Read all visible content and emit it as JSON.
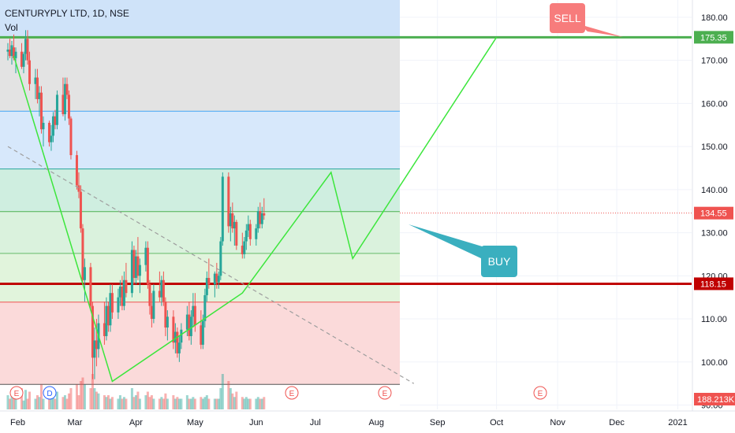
{
  "header": {
    "title": "CENTURYPLY LTD, 1D, NSE",
    "indicator": "Vol"
  },
  "chart_data": {
    "type": "candlestick",
    "symbol": "CENTURYPLY LTD",
    "interval": "1D",
    "exchange": "NSE",
    "ylim": [
      89,
      184
    ],
    "y_ticks": [
      "180.00",
      "170.00",
      "160.00",
      "150.00",
      "140.00",
      "130.00",
      "120.00",
      "110.00",
      "100.00",
      "90.00"
    ],
    "x_ticks": [
      "Feb",
      "Mar",
      "Apr",
      "May",
      "Jun",
      "Jul",
      "Aug",
      "Sep",
      "Oct",
      "Nov",
      "Dec",
      "2021"
    ],
    "price_labels": [
      {
        "text": "175.35",
        "value": 175.35,
        "color": "#4caf50"
      },
      {
        "text": "134.55",
        "value": 134.55,
        "color": "#ef5350"
      },
      {
        "text": "118.15",
        "value": 118.15,
        "color": "#c00000"
      }
    ],
    "volume_label": "188.213K",
    "horizontal_lines": [
      {
        "value": 175.35,
        "color": "#4caf50"
      },
      {
        "value": 118.15,
        "color": "#c00000"
      }
    ],
    "fib_levels": [
      175.35,
      158.2,
      144.8,
      134.9,
      125.2,
      113.9,
      94.8
    ],
    "fib_zone_colors": [
      "#e3e3e3",
      "#d7e8fb",
      "#cfeee0",
      "#daf2dd",
      "#e1f4dc",
      "#fbdada",
      "#fbdada"
    ],
    "top_band_color": "#cfe3f9",
    "trendlines": [
      {
        "name": "zigzag",
        "color": "#3ce63c",
        "points": [
          [
            "2020-01-30",
            171
          ],
          [
            "2020-03-20",
            95.5
          ],
          [
            "2020-05-25",
            116
          ],
          [
            "2020-07-09",
            144
          ],
          [
            "2020-07-20",
            124
          ],
          [
            "2020-10-01",
            175.35
          ]
        ]
      },
      {
        "name": "descending",
        "color": "#9e9e9e",
        "dashed": true,
        "points": [
          [
            "2020-01-27",
            150
          ],
          [
            "2020-08-20",
            95
          ]
        ]
      }
    ],
    "annotations": [
      {
        "text": "SELL",
        "color": "#f77c7c"
      },
      {
        "text": "BUY",
        "color": "#3aafbf"
      }
    ],
    "event_markers": [
      {
        "letter": "E",
        "color": "#ef5350"
      },
      {
        "letter": "D",
        "color": "#2962ff"
      },
      {
        "letter": "E",
        "color": "#ef5350"
      },
      {
        "letter": "E",
        "color": "#ef5350"
      },
      {
        "letter": "E",
        "color": "#ef5350"
      }
    ],
    "candles": [
      [
        172,
        174,
        170,
        172.5
      ],
      [
        172.5,
        175,
        170.5,
        171
      ],
      [
        171,
        174.5,
        169,
        173.5
      ],
      [
        173,
        176,
        170,
        170.5
      ],
      [
        170.5,
        173,
        167,
        172
      ],
      [
        172,
        174,
        168,
        168.5
      ],
      [
        168.5,
        172,
        167,
        171.5
      ],
      [
        171.5,
        177,
        170,
        175
      ],
      [
        175,
        177,
        169,
        170
      ],
      [
        170,
        172,
        163,
        164.5
      ],
      [
        164.5,
        168,
        161,
        166
      ],
      [
        166,
        168,
        160,
        161
      ],
      [
        161,
        164,
        157,
        162.5
      ],
      [
        162.5,
        164,
        153,
        154
      ],
      [
        154,
        157,
        150,
        155.5
      ],
      [
        155.5,
        156,
        150,
        151
      ],
      [
        151,
        155,
        149,
        152.5
      ],
      [
        152.5,
        158,
        151,
        157
      ],
      [
        157,
        158.5,
        154,
        155
      ],
      [
        155,
        163,
        154,
        162
      ],
      [
        162,
        166,
        157,
        157.5
      ],
      [
        157.5,
        166,
        156,
        164.5
      ],
      [
        164.5,
        166,
        161,
        162
      ],
      [
        162,
        163,
        155,
        156.5
      ],
      [
        156.5,
        157,
        147,
        148
      ],
      [
        148,
        149,
        140,
        141
      ],
      [
        141,
        144,
        138,
        139.5
      ],
      [
        139.5,
        141,
        130,
        131
      ],
      [
        131,
        132,
        118,
        119
      ],
      [
        119,
        124,
        114,
        122
      ],
      [
        122,
        123,
        112,
        113
      ],
      [
        113,
        114,
        96,
        101
      ],
      [
        101,
        108,
        96,
        105
      ],
      [
        105,
        110,
        99,
        103
      ],
      [
        103,
        111,
        101,
        109
      ],
      [
        109,
        114,
        104,
        106
      ],
      [
        106,
        115,
        105,
        113
      ],
      [
        113,
        114,
        107,
        108.5
      ],
      [
        108.5,
        118,
        107,
        116
      ],
      [
        116,
        118,
        110,
        111.5
      ],
      [
        111.5,
        117,
        110,
        115
      ],
      [
        115,
        119,
        113,
        117.5
      ],
      [
        117.5,
        120,
        112,
        113
      ],
      [
        113,
        121,
        112,
        119
      ],
      [
        119,
        123,
        115,
        116
      ],
      [
        116,
        128,
        115,
        126
      ],
      [
        126,
        127,
        118,
        119.5
      ],
      [
        119.5,
        126,
        118,
        124.5
      ],
      [
        124.5,
        129,
        119,
        120
      ],
      [
        120,
        124,
        116,
        122.5
      ],
      [
        122.5,
        128,
        121,
        126.5
      ],
      [
        126.5,
        128,
        117,
        118
      ],
      [
        118,
        119,
        111,
        113
      ],
      [
        113,
        116,
        108,
        110
      ],
      [
        110,
        118,
        109,
        116.5
      ],
      [
        116.5,
        121,
        114,
        115
      ],
      [
        115,
        120,
        113,
        119
      ],
      [
        119,
        121,
        113,
        114
      ],
      [
        114,
        115,
        106,
        108
      ],
      [
        108,
        112,
        105,
        110.5
      ],
      [
        110.5,
        112,
        103,
        104.5
      ],
      [
        104.5,
        109,
        102,
        107
      ],
      [
        107,
        108,
        101,
        102
      ],
      [
        102,
        106,
        100,
        104.5
      ],
      [
        104.5,
        109,
        103,
        107.5
      ],
      [
        107.5,
        113,
        106,
        111
      ],
      [
        111,
        114,
        105,
        106
      ],
      [
        106,
        112,
        104,
        110.5
      ],
      [
        110.5,
        116,
        108,
        113
      ],
      [
        113,
        116,
        107,
        108.5
      ],
      [
        108.5,
        112,
        103,
        104
      ],
      [
        104,
        111,
        103,
        109.5
      ],
      [
        109.5,
        117,
        108,
        115.5
      ],
      [
        115.5,
        121,
        114,
        119.5
      ],
      [
        119.5,
        124,
        117,
        118
      ],
      [
        118,
        121,
        115,
        120.5
      ],
      [
        120.5,
        123,
        117,
        118.5
      ],
      [
        118.5,
        121,
        117,
        120
      ],
      [
        120,
        129,
        119,
        128
      ],
      [
        128,
        144,
        127,
        143
      ],
      [
        143,
        144,
        130,
        131.5
      ],
      [
        131.5,
        136,
        128,
        134.5
      ],
      [
        134.5,
        137,
        130,
        131
      ],
      [
        131,
        134,
        127,
        132.5
      ],
      [
        132.5,
        133,
        126,
        127
      ],
      [
        127,
        130,
        124,
        125
      ],
      [
        125,
        129,
        124,
        128
      ],
      [
        128,
        132,
        126,
        130.5
      ],
      [
        130.5,
        134,
        129,
        132
      ],
      [
        132,
        133,
        127,
        128.5
      ],
      [
        128.5,
        132,
        127,
        131
      ],
      [
        131,
        136,
        130,
        135
      ],
      [
        135,
        137,
        131,
        132
      ],
      [
        132,
        136,
        131,
        134.5
      ],
      [
        134.5,
        138,
        133,
        134
      ]
    ],
    "volumes": [
      [
        0.4,
        0
      ],
      [
        0.3,
        1
      ],
      [
        0.5,
        0
      ],
      [
        0.35,
        1
      ],
      [
        0.3,
        0
      ],
      [
        0.6,
        1
      ],
      [
        0.25,
        0
      ],
      [
        0.55,
        0
      ],
      [
        0.3,
        1
      ],
      [
        0.5,
        1
      ],
      [
        0.3,
        0
      ],
      [
        0.4,
        1
      ],
      [
        0.35,
        0
      ],
      [
        0.7,
        1
      ],
      [
        0.3,
        0
      ],
      [
        0.45,
        1
      ],
      [
        0.3,
        0
      ],
      [
        0.4,
        0
      ],
      [
        0.3,
        1
      ],
      [
        0.5,
        0
      ],
      [
        0.35,
        1
      ],
      [
        0.4,
        0
      ],
      [
        0.3,
        1
      ],
      [
        0.45,
        1
      ],
      [
        0.6,
        1
      ],
      [
        0.7,
        1
      ],
      [
        0.4,
        1
      ],
      [
        0.8,
        1
      ],
      [
        0.9,
        1
      ],
      [
        0.7,
        0
      ],
      [
        0.6,
        1
      ],
      [
        1.0,
        1
      ],
      [
        0.6,
        0
      ],
      [
        0.5,
        1
      ],
      [
        0.45,
        0
      ],
      [
        0.4,
        1
      ],
      [
        0.35,
        0
      ],
      [
        0.4,
        1
      ],
      [
        0.3,
        0
      ],
      [
        0.35,
        1
      ],
      [
        0.3,
        0
      ],
      [
        0.4,
        0
      ],
      [
        0.3,
        1
      ],
      [
        0.35,
        0
      ],
      [
        0.3,
        1
      ],
      [
        0.6,
        0
      ],
      [
        0.35,
        1
      ],
      [
        0.4,
        0
      ],
      [
        0.5,
        1
      ],
      [
        0.3,
        0
      ],
      [
        0.4,
        0
      ],
      [
        0.5,
        1
      ],
      [
        0.35,
        1
      ],
      [
        0.4,
        1
      ],
      [
        0.3,
        0
      ],
      [
        0.3,
        1
      ],
      [
        0.35,
        0
      ],
      [
        0.3,
        1
      ],
      [
        0.45,
        1
      ],
      [
        0.3,
        0
      ],
      [
        0.4,
        1
      ],
      [
        0.3,
        0
      ],
      [
        0.35,
        1
      ],
      [
        0.3,
        0
      ],
      [
        0.3,
        0
      ],
      [
        0.4,
        0
      ],
      [
        0.3,
        1
      ],
      [
        0.3,
        0
      ],
      [
        0.35,
        0
      ],
      [
        0.3,
        1
      ],
      [
        0.35,
        1
      ],
      [
        0.3,
        0
      ],
      [
        0.35,
        0
      ],
      [
        0.4,
        0
      ],
      [
        0.3,
        1
      ],
      [
        0.3,
        0
      ],
      [
        0.3,
        1
      ],
      [
        0.3,
        0
      ],
      [
        0.6,
        0
      ],
      [
        1.0,
        0
      ],
      [
        0.8,
        1
      ],
      [
        0.6,
        0
      ],
      [
        0.45,
        1
      ],
      [
        0.35,
        0
      ],
      [
        0.5,
        1
      ],
      [
        0.35,
        1
      ],
      [
        0.3,
        0
      ],
      [
        0.35,
        0
      ],
      [
        0.3,
        0
      ],
      [
        0.3,
        1
      ],
      [
        0.3,
        0
      ],
      [
        0.35,
        0
      ],
      [
        0.3,
        1
      ],
      [
        0.3,
        0
      ],
      [
        0.35,
        1
      ]
    ]
  }
}
